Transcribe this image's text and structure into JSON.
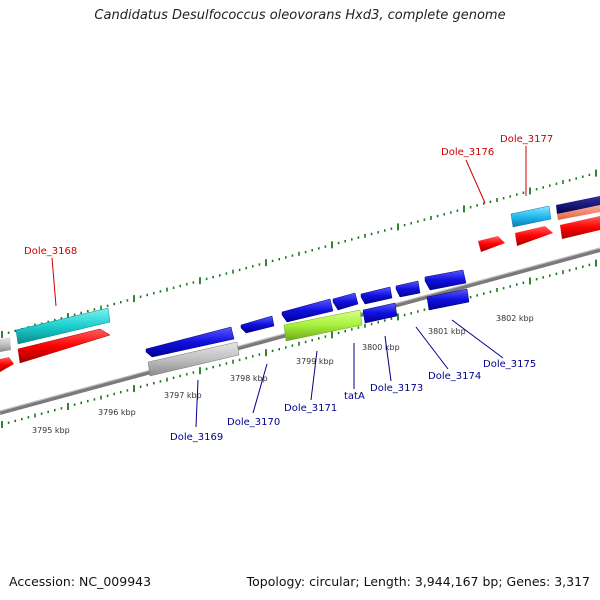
{
  "header": {
    "title": "Candidatus Desulfococcus oleovorans Hxd3, complete genome"
  },
  "footer": {
    "accession": "Accession: NC_009943",
    "summary": "Topology: circular; Length: 3,944,167 bp; Genes: 3,317"
  },
  "colors": {
    "label_red": "#cc0000",
    "label_blue": "#00008b",
    "tick_green": "#1a7a1a",
    "backbone": "#808080"
  },
  "scale_labels": [
    "3795 kbp",
    "3796 kbp",
    "3797 kbp",
    "3798 kbp",
    "3799 kbp",
    "3800 kbp",
    "3801 kbp",
    "3802 kbp"
  ],
  "gene_labels_top": [
    "Dole_3168",
    "Dole_3176",
    "Dole_3177"
  ],
  "gene_labels_bottom": [
    "Dole_3169",
    "Dole_3170",
    "Dole_3171",
    "tatA",
    "Dole_3173",
    "Dole_3174",
    "Dole_3175"
  ]
}
